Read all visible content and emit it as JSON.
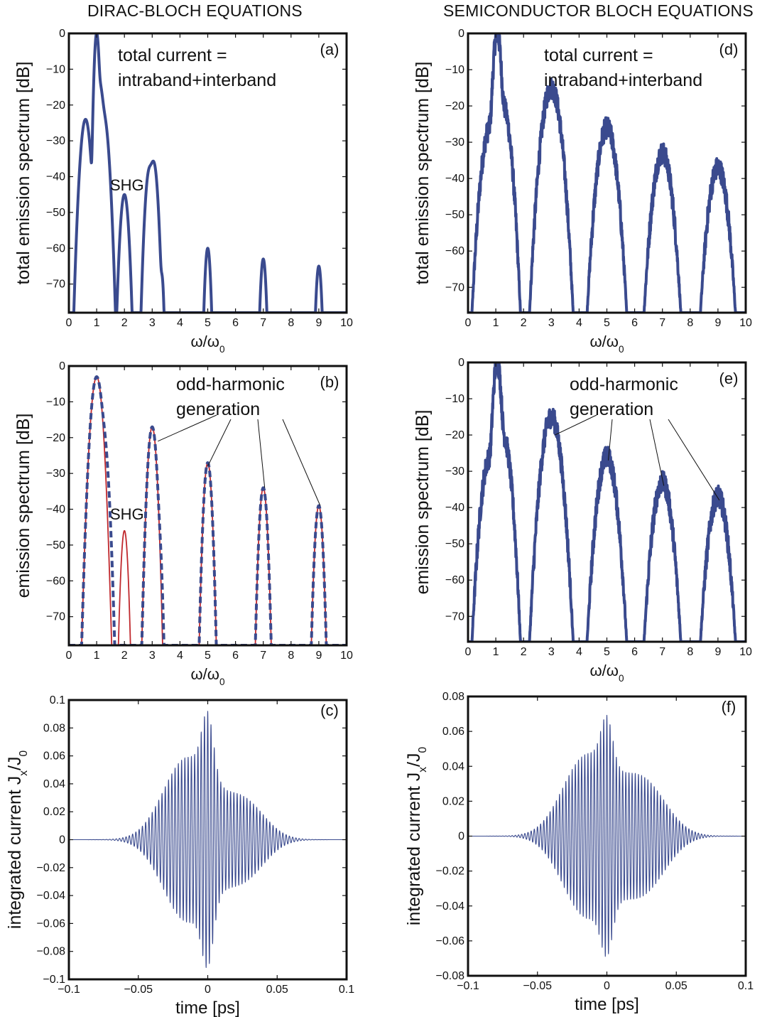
{
  "titles": {
    "left": "DIRAC-BLOCH EQUATIONS",
    "right": "SEMICONDUCTOR BLOCH EQUATIONS"
  },
  "colors": {
    "blue": "#3a4a8e",
    "red": "#c0282d",
    "axis": "#111111"
  },
  "chart_data": [
    {
      "id": "a",
      "type": "line",
      "panel_label": "(a)",
      "xlabel": "ω/ω0",
      "ylabel": "total emission spectrum [dB]",
      "xlim": [
        0,
        10
      ],
      "ylim": [
        -78,
        0
      ],
      "xticks": [
        "0",
        "1",
        "2",
        "3",
        "4",
        "5",
        "6",
        "7",
        "8",
        "9",
        "10"
      ],
      "yticks": [
        "0",
        "−10",
        "−20",
        "−30",
        "−40",
        "−50",
        "−60",
        "−70"
      ],
      "annotations": [
        "total current =",
        "intraband+interband",
        "SHG"
      ],
      "grid": false,
      "series": [
        {
          "color": "blue",
          "style": "solid",
          "floor": -78,
          "peaks": [
            {
              "x": 0.6,
              "y": -24,
              "w": 0.12
            },
            {
              "x": 1.0,
              "y": 0,
              "w": 0.06
            },
            {
              "x": 1.1,
              "y": -14,
              "w": 0.1
            },
            {
              "x": 1.25,
              "y": -23,
              "w": 0.12
            },
            {
              "x": 2.0,
              "y": -45,
              "w": 0.1
            },
            {
              "x": 2.9,
              "y": -38,
              "w": 0.1
            },
            {
              "x": 3.05,
              "y": -36,
              "w": 0.1
            },
            {
              "x": 3.35,
              "y": -68,
              "w": 0.05
            },
            {
              "x": 5.0,
              "y": -60,
              "w": 0.07
            },
            {
              "x": 7.0,
              "y": -63,
              "w": 0.07
            },
            {
              "x": 9.0,
              "y": -65,
              "w": 0.07
            }
          ]
        }
      ]
    },
    {
      "id": "b",
      "type": "line",
      "panel_label": "(b)",
      "xlabel": "ω/ω0",
      "ylabel": "emission spectrum [dB]",
      "xlim": [
        0,
        10
      ],
      "ylim": [
        -78,
        0
      ],
      "xticks": [
        "0",
        "1",
        "2",
        "3",
        "4",
        "5",
        "6",
        "7",
        "8",
        "9",
        "10"
      ],
      "yticks": [
        "0",
        "−10",
        "−20",
        "−30",
        "−40",
        "−50",
        "−60",
        "−70"
      ],
      "annotations": [
        "odd-harmonic",
        "generation",
        "SHG"
      ],
      "grid": false,
      "series": [
        {
          "color": "red",
          "style": "solid",
          "floor": -78,
          "peaks": [
            {
              "x": 1.0,
              "y": -3,
              "w": 0.13
            },
            {
              "x": 2.0,
              "y": -46,
              "w": 0.08
            },
            {
              "x": 3.0,
              "y": -17,
              "w": 0.1
            },
            {
              "x": 5.0,
              "y": -27,
              "w": 0.09
            },
            {
              "x": 7.0,
              "y": -34,
              "w": 0.09
            },
            {
              "x": 9.0,
              "y": -39,
              "w": 0.09
            }
          ]
        },
        {
          "color": "blue",
          "style": "dashed",
          "floor": -78,
          "peaks": [
            {
              "x": 1.0,
              "y": -3,
              "w": 0.13
            },
            {
              "x": 1.2,
              "y": -17,
              "w": 0.12
            },
            {
              "x": 3.0,
              "y": -17,
              "w": 0.1
            },
            {
              "x": 3.2,
              "y": -44,
              "w": 0.08
            },
            {
              "x": 5.0,
              "y": -27,
              "w": 0.09
            },
            {
              "x": 7.0,
              "y": -34,
              "w": 0.09
            },
            {
              "x": 9.0,
              "y": -39,
              "w": 0.09
            }
          ]
        }
      ]
    },
    {
      "id": "c",
      "type": "line",
      "panel_label": "(c)",
      "xlabel": "time [ps]",
      "ylabel": "integrated current J_x/J_0",
      "xlim": [
        -0.1,
        0.1
      ],
      "ylim": [
        -0.1,
        0.1
      ],
      "xticks": [
        "−0.1",
        "−0.05",
        "0",
        "0.05",
        "0.1"
      ],
      "yticks": [
        "0.1",
        "0.08",
        "0.06",
        "0.04",
        "0.02",
        "0",
        "−0.02",
        "−0.04",
        "−0.06",
        "−0.08",
        "−0.1"
      ],
      "grid": false,
      "series": [
        {
          "color": "blue",
          "style": "solid",
          "cycles_per_ps": 425,
          "envelope": [
            {
              "t": -0.015,
              "a": 0.058,
              "s": 0.024
            },
            {
              "t": 0.0,
              "a": 0.045,
              "s": 0.006
            },
            {
              "t": 0.025,
              "a": 0.028,
              "s": 0.022
            }
          ]
        }
      ]
    },
    {
      "id": "d",
      "type": "line",
      "panel_label": "(d)",
      "xlabel": "ω/ω0",
      "ylabel": "total emission spectrum [dB]",
      "xlim": [
        0,
        10
      ],
      "ylim": [
        -77,
        0
      ],
      "xticks": [
        "0",
        "1",
        "2",
        "3",
        "4",
        "5",
        "6",
        "7",
        "8",
        "9",
        "10"
      ],
      "yticks": [
        "0",
        "−10",
        "−20",
        "−30",
        "−40",
        "−50",
        "−60",
        "−70"
      ],
      "annotations": [
        "total current =",
        "intraband+interband"
      ],
      "grid": false,
      "series": [
        {
          "color": "blue",
          "style": "solid",
          "floor": -77,
          "noisy": true,
          "peaks": [
            {
              "x": 0.8,
              "y": -26,
              "w": 0.12
            },
            {
              "x": 1.05,
              "y": 0,
              "w": 0.06
            },
            {
              "x": 1.25,
              "y": -20,
              "w": 0.11
            },
            {
              "x": 3.0,
              "y": -15,
              "w": 0.13
            },
            {
              "x": 5.0,
              "y": -26,
              "w": 0.13
            },
            {
              "x": 7.0,
              "y": -33,
              "w": 0.13
            },
            {
              "x": 9.0,
              "y": -37,
              "w": 0.13
            }
          ]
        }
      ]
    },
    {
      "id": "e",
      "type": "line",
      "panel_label": "(e)",
      "xlabel": "ω/ω0",
      "ylabel": "emission spectrum [dB]",
      "xlim": [
        0,
        10
      ],
      "ylim": [
        -77,
        0
      ],
      "xticks": [
        "0",
        "1",
        "2",
        "3",
        "4",
        "5",
        "6",
        "7",
        "8",
        "9",
        "10"
      ],
      "yticks": [
        "0",
        "−10",
        "−20",
        "−30",
        "−40",
        "−50",
        "−60",
        "−70"
      ],
      "annotations": [
        "odd-harmonic",
        "generation"
      ],
      "grid": false,
      "series": [
        {
          "color": "blue",
          "style": "solid",
          "floor": -77,
          "noisy": true,
          "peaks": [
            {
              "x": 0.8,
              "y": -26,
              "w": 0.12
            },
            {
              "x": 1.05,
              "y": 0,
              "w": 0.06
            },
            {
              "x": 1.25,
              "y": -20,
              "w": 0.11
            },
            {
              "x": 3.0,
              "y": -15,
              "w": 0.13
            },
            {
              "x": 5.0,
              "y": -26,
              "w": 0.13
            },
            {
              "x": 7.0,
              "y": -33,
              "w": 0.13
            },
            {
              "x": 9.0,
              "y": -37,
              "w": 0.13
            }
          ]
        }
      ]
    },
    {
      "id": "f",
      "type": "line",
      "panel_label": "(f)",
      "xlabel": "time [ps]",
      "ylabel": "integrated current J_x/J_0",
      "xlim": [
        -0.1,
        0.1
      ],
      "ylim": [
        -0.08,
        0.08
      ],
      "xticks": [
        "−0.1",
        "−0.05",
        "0",
        "0.05",
        "0.1"
      ],
      "yticks": [
        "0.08",
        "0.06",
        "0.04",
        "0.02",
        "0",
        "−0.02",
        "−0.04",
        "−0.06",
        "−0.08"
      ],
      "grid": false,
      "series": [
        {
          "color": "blue",
          "style": "solid",
          "cycles_per_ps": 440,
          "envelope": [
            {
              "t": -0.015,
              "a": 0.045,
              "s": 0.024
            },
            {
              "t": 0.0,
              "a": 0.028,
              "s": 0.006
            },
            {
              "t": 0.025,
              "a": 0.032,
              "s": 0.024
            }
          ]
        }
      ]
    }
  ]
}
